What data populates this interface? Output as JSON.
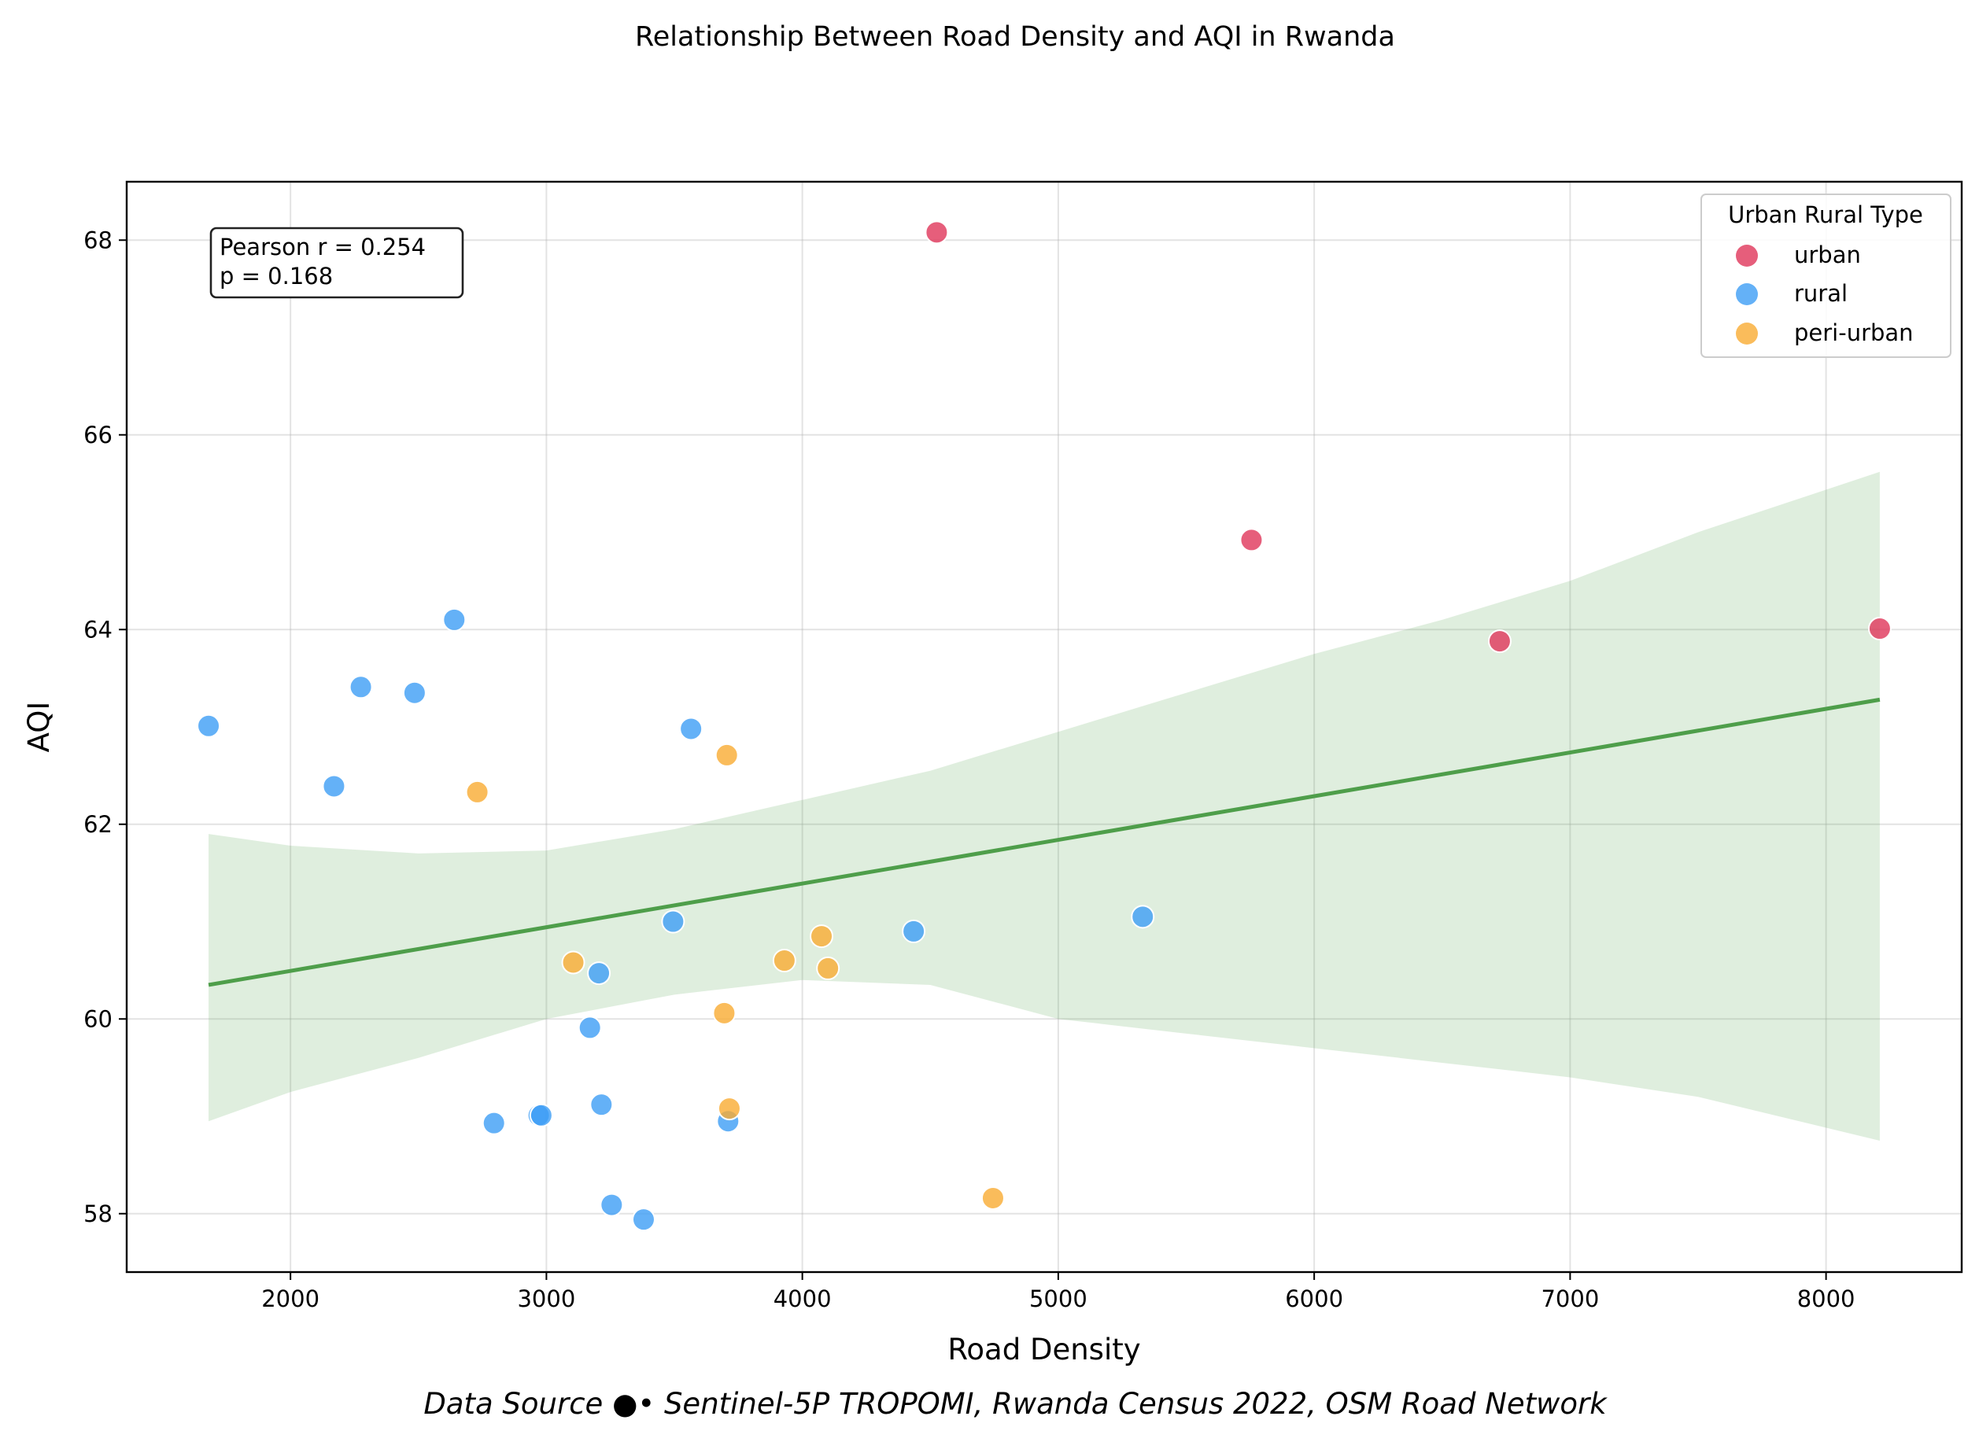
{
  "chart_data": {
    "type": "scatter",
    "title": "Relationship Between Road Density and AQI in Rwanda",
    "xlabel": "Road Density",
    "ylabel": "AQI",
    "xlim": [
      1360,
      8530
    ],
    "ylim": [
      57.4,
      68.6
    ],
    "xticks": [
      2000,
      3000,
      4000,
      5000,
      6000,
      7000,
      8000
    ],
    "yticks": [
      58,
      60,
      62,
      64,
      66,
      68
    ],
    "grid": true,
    "legend": {
      "title": "Urban Rural Type",
      "placement": "top-right",
      "entries": [
        "urban",
        "rural",
        "peri-urban"
      ]
    },
    "annotation": {
      "line1": "Pearson r = 0.254",
      "line2": "p = 0.168"
    },
    "footer": "Data Source ●• Sentinel-5P TROPOMI, Rwanda Census 2022, OSM Road Network",
    "colors": {
      "urban": "#e0365a",
      "rural": "#3d9ef5",
      "peri-urban": "#f9ab32",
      "fit": "#4e9e4a",
      "band": "#4e9e4a"
    },
    "series": [
      {
        "name": "urban",
        "points": [
          [
            4525,
            68.08
          ],
          [
            5755,
            64.92
          ],
          [
            6725,
            63.88
          ],
          [
            8210,
            64.01
          ]
        ]
      },
      {
        "name": "rural",
        "points": [
          [
            1680,
            63.01
          ],
          [
            2170,
            62.39
          ],
          [
            2275,
            63.41
          ],
          [
            2485,
            63.35
          ],
          [
            2640,
            64.1
          ],
          [
            3565,
            62.98
          ],
          [
            3495,
            61.0
          ],
          [
            3205,
            60.47
          ],
          [
            3170,
            59.91
          ],
          [
            3215,
            59.12
          ],
          [
            2795,
            58.93
          ],
          [
            2970,
            59.01
          ],
          [
            2980,
            59.01
          ],
          [
            3255,
            58.09
          ],
          [
            3380,
            57.94
          ],
          [
            3710,
            58.95
          ],
          [
            4435,
            60.9
          ],
          [
            5330,
            61.05
          ]
        ]
      },
      {
        "name": "peri-urban",
        "points": [
          [
            2730,
            62.33
          ],
          [
            3705,
            62.71
          ],
          [
            3105,
            60.58
          ],
          [
            3930,
            60.6
          ],
          [
            4075,
            60.85
          ],
          [
            4100,
            60.52
          ],
          [
            3695,
            60.06
          ],
          [
            3715,
            59.08
          ],
          [
            4745,
            58.16
          ]
        ]
      }
    ],
    "regression": {
      "x": [
        1680,
        8210
      ],
      "y": [
        60.35,
        63.28
      ]
    },
    "confidence_band": {
      "x": [
        1680,
        2000,
        2500,
        3000,
        3500,
        4000,
        4500,
        5000,
        5500,
        6000,
        6500,
        7000,
        7500,
        8210
      ],
      "upper": [
        61.9,
        61.78,
        61.7,
        61.73,
        61.95,
        62.25,
        62.55,
        62.95,
        63.35,
        63.75,
        64.1,
        64.5,
        65.0,
        65.62
      ],
      "lower": [
        58.95,
        59.25,
        59.6,
        60.0,
        60.25,
        60.4,
        60.35,
        60.0,
        59.85,
        59.7,
        59.55,
        59.4,
        59.2,
        58.75
      ]
    }
  }
}
